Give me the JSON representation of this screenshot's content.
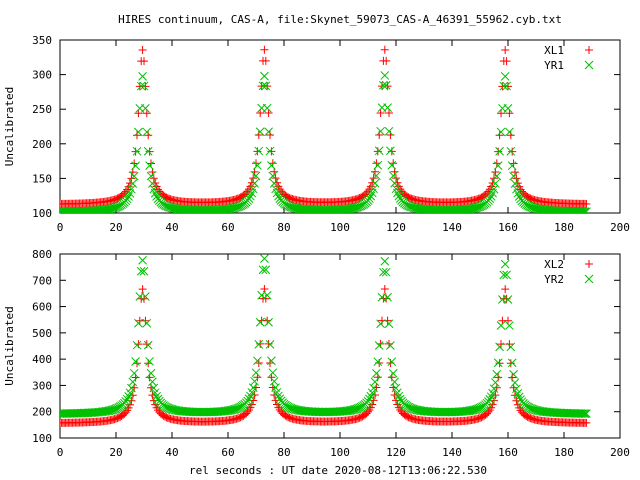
{
  "title": "HIRES continuum, CAS-A, file:Skynet_59073_CAS-A_46391_55962.cyb.txt",
  "xlabel": "rel seconds : UT date 2020-08-12T13:06:22.530",
  "colors": {
    "xl": "#ff0000",
    "yr": "#00c000",
    "background": "#ffffff",
    "axes": "#000000"
  },
  "chart_data": [
    {
      "type": "scatter",
      "title": "HIRES continuum, CAS-A, file:Skynet_59073_CAS-A_46391_55962.cyb.txt",
      "xlabel": "",
      "ylabel": "Uncalibrated",
      "xlim": [
        0,
        200
      ],
      "ylim": [
        100,
        350
      ],
      "xticks": [
        0,
        20,
        40,
        60,
        80,
        100,
        120,
        140,
        160,
        180,
        200
      ],
      "yticks": [
        100,
        150,
        200,
        250,
        300,
        350
      ],
      "grid": false,
      "legend_position": "top-right",
      "sample_interval": 0.5,
      "x_range": [
        0,
        188
      ],
      "series": [
        {
          "name": "XL1",
          "marker": "plus",
          "color": "#ff0000",
          "baseline": 112,
          "peak_centers": [
            29.5,
            73.0,
            116.0,
            159.0
          ],
          "peak_values": [
            335,
            335,
            335,
            335
          ],
          "peak_width": 1.8
        },
        {
          "name": "YR1",
          "marker": "cross",
          "color": "#00c000",
          "baseline": 101,
          "peak_centers": [
            29.5,
            73.0,
            116.0,
            159.0
          ],
          "peak_values": [
            297,
            297,
            298,
            297
          ],
          "peak_width": 1.8
        }
      ]
    },
    {
      "type": "scatter",
      "title": "",
      "xlabel": "rel seconds : UT date 2020-08-12T13:06:22.530",
      "ylabel": "Uncalibrated",
      "xlim": [
        0,
        200
      ],
      "ylim": [
        100,
        800
      ],
      "xticks": [
        0,
        20,
        40,
        60,
        80,
        100,
        120,
        140,
        160,
        180,
        200
      ],
      "yticks": [
        100,
        200,
        300,
        400,
        500,
        600,
        700,
        800
      ],
      "grid": false,
      "legend_position": "top-right",
      "sample_interval": 0.5,
      "x_range": [
        0,
        188
      ],
      "series": [
        {
          "name": "XL2",
          "marker": "plus",
          "color": "#ff0000",
          "baseline": 155,
          "peak_centers": [
            29.5,
            73.0,
            116.0,
            159.0
          ],
          "peak_values": [
            665,
            665,
            665,
            665
          ],
          "peak_width": 1.8
        },
        {
          "name": "YR2",
          "marker": "cross",
          "color": "#00c000",
          "baseline": 190,
          "peak_centers": [
            29.5,
            73.0,
            116.0,
            159.0
          ],
          "peak_values": [
            775,
            780,
            770,
            760
          ],
          "peak_width": 1.8
        }
      ]
    }
  ]
}
